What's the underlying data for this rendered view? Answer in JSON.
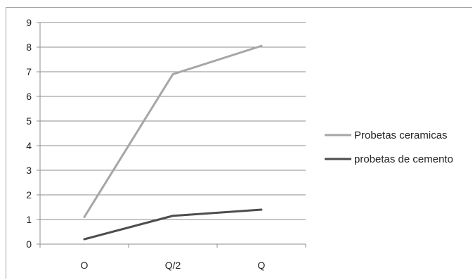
{
  "chart_data": {
    "type": "line",
    "title": "",
    "xlabel": "",
    "ylabel": "",
    "categories": [
      "O",
      "Q/2",
      "Q"
    ],
    "ylim": [
      0,
      9
    ],
    "yticks": [
      "0",
      "1",
      "2",
      "3",
      "4",
      "5",
      "6",
      "7",
      "8",
      "9"
    ],
    "grid": true,
    "legend_position": "right",
    "series": [
      {
        "name": "Probetas ceramicas",
        "values": [
          1.1,
          6.9,
          8.05
        ],
        "color": "#a6a6a6"
      },
      {
        "name": "probetas de cemento",
        "values": [
          0.2,
          1.15,
          1.4
        ],
        "color": "#4d4d4d"
      }
    ]
  }
}
